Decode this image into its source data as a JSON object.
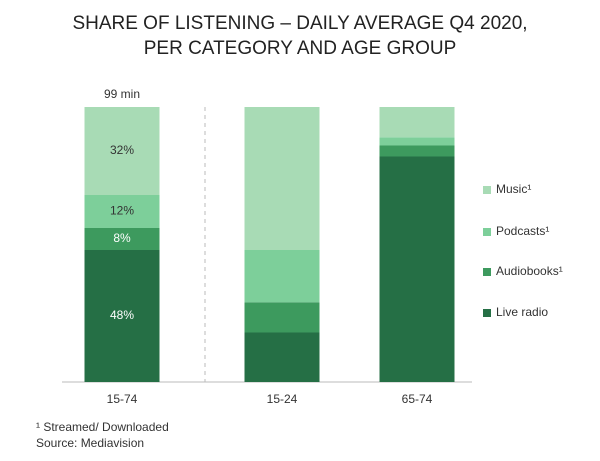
{
  "chart_data": {
    "type": "stacked_bar",
    "title": [
      "SHARE OF LISTENING – DAILY AVERAGE Q4 2020,",
      "PER CATEGORY AND AGE GROUP"
    ],
    "annotation": "99 min",
    "categories": [
      "15-74",
      "15-24",
      "65-74"
    ],
    "ylim": [
      0,
      100
    ],
    "series": [
      {
        "name": "Live radio",
        "color": "#256f45",
        "values": [
          48,
          18,
          82
        ],
        "value_labels": [
          "48%",
          null,
          null
        ]
      },
      {
        "name": "Audiobooks¹",
        "color": "#3d9a5e",
        "values": [
          8,
          11,
          4
        ],
        "value_labels": [
          "8%",
          null,
          null
        ]
      },
      {
        "name": "Podcasts¹",
        "color": "#7dcf9a",
        "values": [
          12,
          19,
          3
        ],
        "value_labels": [
          "12%",
          null,
          null
        ]
      },
      {
        "name": "Music¹",
        "color": "#a8dbb5",
        "values": [
          32,
          52,
          11
        ],
        "value_labels": [
          "32%",
          null,
          null
        ]
      }
    ],
    "footnotes": [
      "¹ Streamed/ Downloaded",
      "Source: Mediavision"
    ]
  }
}
